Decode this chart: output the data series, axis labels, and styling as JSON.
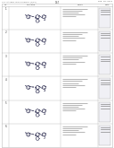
{
  "background_color": "#ffffff",
  "title_left": "U.S. PATENT DOCUMENTS (1/12)",
  "title_right": "Feb. 18, 2014",
  "title_center": "167",
  "line_color": "#bbbbbb",
  "text_color": "#444444",
  "mol_color": "#333355",
  "header_cols": [
    "No.",
    "Structure",
    "Name",
    "Data"
  ],
  "num_rows": 6,
  "row_nos": [
    "1",
    "2",
    "3",
    "4",
    "5",
    "6"
  ]
}
